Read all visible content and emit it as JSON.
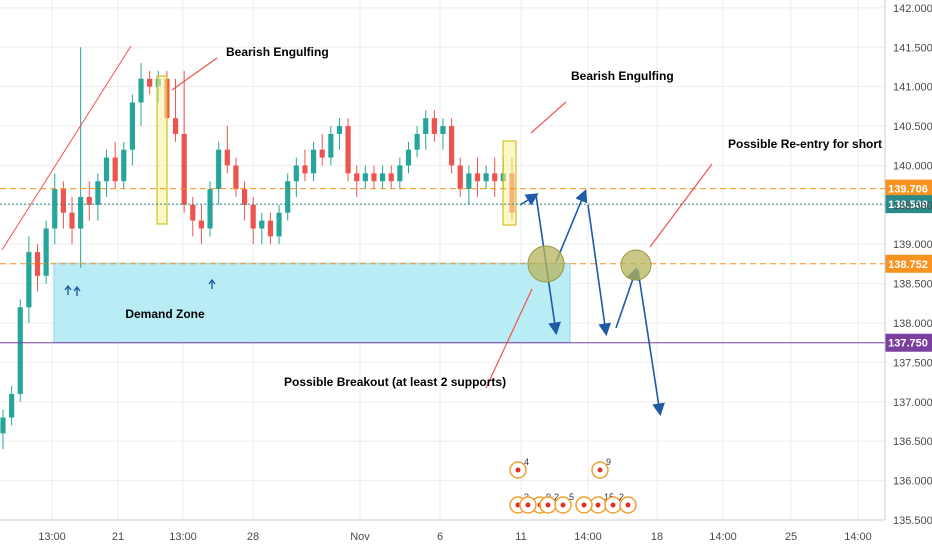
{
  "chart_data": {
    "type": "candlestick",
    "title": "",
    "ylim": [
      135.5,
      142.1
    ],
    "y_ticks": [
      "142.000",
      "141.500",
      "141.000",
      "140.500",
      "140.000",
      "139.500",
      "139.000",
      "138.500",
      "138.000",
      "137.500",
      "137.000",
      "136.500",
      "136.000",
      "135.500"
    ],
    "x_ticks": [
      "13:00",
      "21",
      "13:00",
      "28",
      "Nov",
      "6",
      "11",
      "14:00",
      "18",
      "14:00",
      "25",
      "14:00"
    ],
    "price_lines": [
      {
        "label": "139.706",
        "value": 139.706,
        "color": "#f7931e",
        "style": "dashed"
      },
      {
        "label": "139.509",
        "value": 139.509,
        "color": "#2a8a8a",
        "style": "dotted"
      },
      {
        "label": "138.752",
        "value": 138.752,
        "color": "#f7931e",
        "style": "dashed"
      },
      {
        "label": "137.750",
        "value": 137.75,
        "color": "#7b3fa0",
        "style": "solid"
      }
    ],
    "demand_zone": {
      "label": "Demand Zone",
      "top": 138.76,
      "bottom": 137.75,
      "color": "#b9ecf5"
    },
    "annotations": [
      {
        "text": "Bearish Engulfing"
      },
      {
        "text": "Bearish Engulfing"
      },
      {
        "text": "Possible Re-entry for short"
      },
      {
        "text": "Possible Breakout (at least 2 supports)"
      }
    ],
    "event_counts": [
      "4",
      "2",
      "9",
      "2",
      "5",
      "9",
      "15",
      "2"
    ],
    "colors": {
      "up": "#26a69a",
      "down": "#ef5350",
      "forecast": "#1e5aa8",
      "highlight": "#f6f3a0",
      "circle": "#b7b45c"
    },
    "candles": [
      [
        136.6,
        136.9,
        136.4,
        136.8
      ],
      [
        136.8,
        137.2,
        136.7,
        137.1
      ],
      [
        137.1,
        138.3,
        137.0,
        138.2
      ],
      [
        138.2,
        139.1,
        138.0,
        138.9
      ],
      [
        138.9,
        139.0,
        138.4,
        138.6
      ],
      [
        138.6,
        139.3,
        138.5,
        139.2
      ],
      [
        139.2,
        139.9,
        139.0,
        139.7
      ],
      [
        139.7,
        139.8,
        139.2,
        139.4
      ],
      [
        139.4,
        139.6,
        139.0,
        139.2
      ],
      [
        139.2,
        141.5,
        138.7,
        139.6
      ],
      [
        139.6,
        139.8,
        139.3,
        139.5
      ],
      [
        139.5,
        139.9,
        139.3,
        139.8
      ],
      [
        139.8,
        140.2,
        139.6,
        140.1
      ],
      [
        140.1,
        140.3,
        139.7,
        139.8
      ],
      [
        139.8,
        140.3,
        139.7,
        140.2
      ],
      [
        140.2,
        140.9,
        140.0,
        140.8
      ],
      [
        140.8,
        141.3,
        140.5,
        141.1
      ],
      [
        141.1,
        141.2,
        140.9,
        141.0
      ],
      [
        141.0,
        141.2,
        140.8,
        141.1
      ],
      [
        141.1,
        141.2,
        140.5,
        140.6
      ],
      [
        140.6,
        141.1,
        140.3,
        140.4
      ],
      [
        140.4,
        141.2,
        139.4,
        139.5
      ],
      [
        139.5,
        139.6,
        139.1,
        139.3
      ],
      [
        139.3,
        139.5,
        139.0,
        139.2
      ],
      [
        139.2,
        139.8,
        139.1,
        139.7
      ],
      [
        139.7,
        140.3,
        139.5,
        140.2
      ],
      [
        140.2,
        140.5,
        139.9,
        140.0
      ],
      [
        140.0,
        140.1,
        139.6,
        139.7
      ],
      [
        139.7,
        139.8,
        139.3,
        139.5
      ],
      [
        139.5,
        139.6,
        139.0,
        139.2
      ],
      [
        139.2,
        139.4,
        139.0,
        139.3
      ],
      [
        139.3,
        139.4,
        139.0,
        139.1
      ],
      [
        139.1,
        139.5,
        139.0,
        139.4
      ],
      [
        139.4,
        139.9,
        139.3,
        139.8
      ],
      [
        139.8,
        140.1,
        139.6,
        140.0
      ],
      [
        140.0,
        140.2,
        139.8,
        139.9
      ],
      [
        139.9,
        140.3,
        139.8,
        140.2
      ],
      [
        140.2,
        140.4,
        140.0,
        140.1
      ],
      [
        140.1,
        140.5,
        140.0,
        140.4
      ],
      [
        140.4,
        140.6,
        140.2,
        140.5
      ],
      [
        140.5,
        140.6,
        139.8,
        139.9
      ],
      [
        139.9,
        140.0,
        139.6,
        139.8
      ],
      [
        139.8,
        140.0,
        139.7,
        139.9
      ],
      [
        139.9,
        140.0,
        139.7,
        139.8
      ],
      [
        139.8,
        140.0,
        139.7,
        139.9
      ],
      [
        139.9,
        140.0,
        139.7,
        139.8
      ],
      [
        139.8,
        140.1,
        139.7,
        140.0
      ],
      [
        140.0,
        140.3,
        139.9,
        140.2
      ],
      [
        140.2,
        140.5,
        140.1,
        140.4
      ],
      [
        140.4,
        140.7,
        140.2,
        140.6
      ],
      [
        140.6,
        140.7,
        140.3,
        140.4
      ],
      [
        140.4,
        140.6,
        140.2,
        140.5
      ],
      [
        140.5,
        140.6,
        139.9,
        140.0
      ],
      [
        140.0,
        140.1,
        139.6,
        139.7
      ],
      [
        139.7,
        140.0,
        139.5,
        139.9
      ],
      [
        139.9,
        140.1,
        139.6,
        139.8
      ],
      [
        139.8,
        140.0,
        139.7,
        139.9
      ],
      [
        139.9,
        140.1,
        139.6,
        139.8
      ],
      [
        139.8,
        140.1,
        139.7,
        139.9
      ],
      [
        139.9,
        140.1,
        139.3,
        139.4
      ]
    ]
  }
}
